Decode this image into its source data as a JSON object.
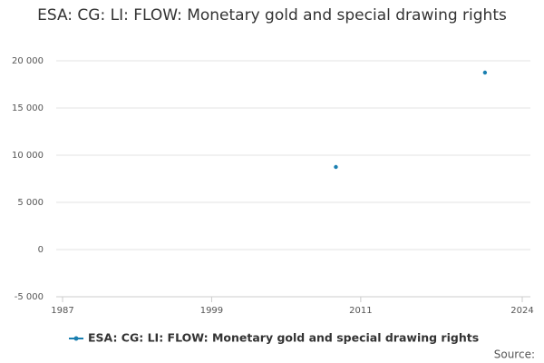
{
  "chart_data": {
    "type": "scatter",
    "title": "ESA: CG: LI: FLOW: Monetary gold and special drawing rights",
    "x": [
      2009,
      2021
    ],
    "series": [
      {
        "name": "ESA: CG: LI: FLOW: Monetary gold and special drawing rights",
        "color": "#1a7fb0",
        "values": [
          8750,
          18750
        ]
      }
    ],
    "xlim": [
      1987,
      2024
    ],
    "xticks": [
      1987,
      1999,
      2011,
      2024
    ],
    "ylim": [
      -5000,
      20000
    ],
    "yticks": [
      {
        "value": -5000,
        "label": "-5 000"
      },
      0,
      {
        "value": 5000,
        "label": "5 000"
      },
      {
        "value": 10000,
        "label": "10 000"
      },
      {
        "value": 15000,
        "label": "15 000"
      },
      {
        "value": 20000,
        "label": "20 000"
      }
    ],
    "grid": true,
    "source": "Source:"
  }
}
